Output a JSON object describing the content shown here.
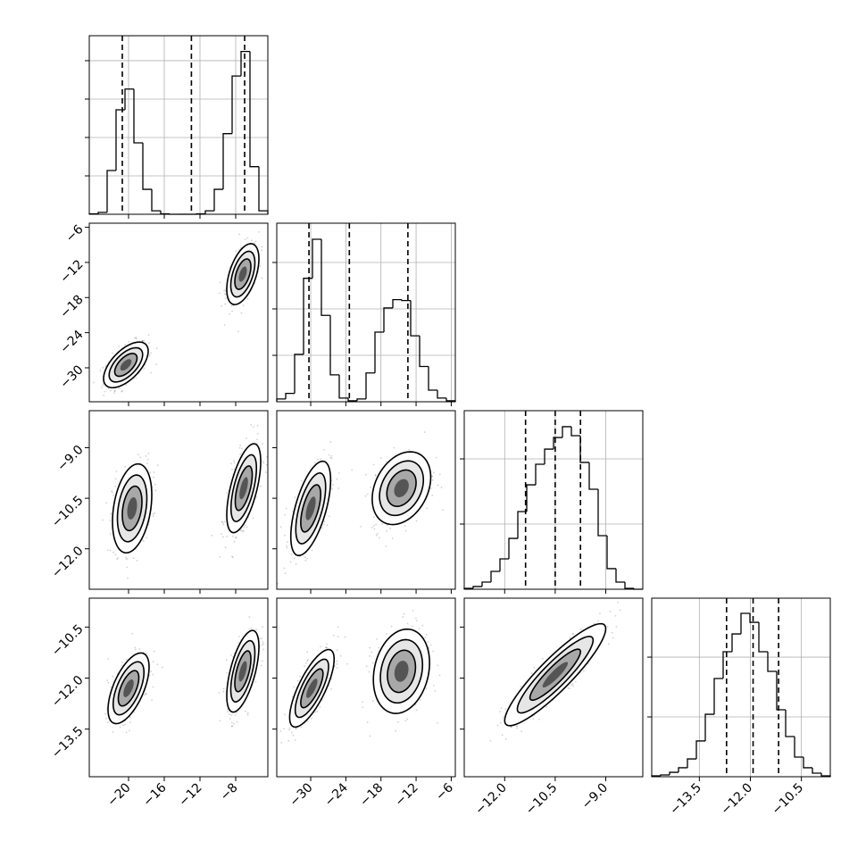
{
  "chart_data": {
    "type": "corner",
    "grid": true,
    "color": "#000000",
    "params": [
      {
        "lim": [
          -24.4,
          -4.4
        ],
        "ticks": [
          {
            "value": -20,
            "label": "−20"
          },
          {
            "value": -16,
            "label": "−16"
          },
          {
            "value": -12,
            "label": "−12"
          },
          {
            "value": -8,
            "label": "−8"
          }
        ],
        "quantiles": [
          -20.7,
          -12.96,
          -7.0
        ],
        "hist": {
          "bins": [
            -24.4,
            -23.4,
            -22.4,
            -21.4,
            -20.4,
            -19.4,
            -18.4,
            -17.4,
            -16.4,
            -15.4,
            -14.4,
            -13.4,
            -12.4,
            -11.4,
            -10.4,
            -9.4,
            -8.4,
            -7.4,
            -6.4,
            -5.4,
            -4.4
          ],
          "counts": [
            5,
            25,
            570,
            1360,
            1630,
            930,
            325,
            45,
            5,
            0,
            0,
            0,
            5,
            45,
            325,
            1050,
            1800,
            2120,
            620,
            45
          ],
          "ylim": [
            0,
            2325
          ],
          "yticks": [
            500,
            1000,
            1500,
            2000
          ]
        }
      },
      {
        "lim": [
          -35.8,
          -5.3
        ],
        "ticks": [
          {
            "value": -30,
            "label": "−30"
          },
          {
            "value": -24,
            "label": "−24"
          },
          {
            "value": -18,
            "label": "−18"
          },
          {
            "value": -12,
            "label": "−12"
          },
          {
            "value": -6,
            "label": "−6"
          }
        ],
        "quantiles": [
          -30.3,
          -23.4,
          -13.4
        ],
        "hist": {
          "bins": [
            -35.8,
            -34.275,
            -32.75,
            -31.225,
            -29.7,
            -28.175,
            -26.65,
            -25.125,
            -23.6,
            -22.075,
            -20.55,
            -19.025,
            -17.5,
            -15.975,
            -14.45,
            -12.925,
            -11.4,
            -9.875,
            -8.35,
            -6.825,
            -5.3
          ],
          "counts": [
            30,
            90,
            510,
            1330,
            1750,
            930,
            290,
            40,
            10,
            30,
            310,
            750,
            1010,
            1100,
            1090,
            710,
            380,
            125,
            40,
            10
          ],
          "ylim": [
            0,
            1923
          ],
          "yticks": [
            500,
            1000,
            1500
          ]
        }
      },
      {
        "lim": [
          -13.2,
          -7.9
        ],
        "ticks": [
          {
            "value": -12,
            "label": "−12.0"
          },
          {
            "value": -10.5,
            "label": "−10.5"
          },
          {
            "value": -9,
            "label": "−9.0"
          }
        ],
        "quantiles": [
          -11.38,
          -10.5,
          -9.75
        ],
        "hist": {
          "bins": [
            -13.2,
            -12.935,
            -12.67,
            -12.405,
            -12.14,
            -11.875,
            -11.61,
            -11.345,
            -11.08,
            -10.815,
            -10.55,
            -10.285,
            -10.02,
            -9.755,
            -9.49,
            -9.225,
            -8.96,
            -8.695,
            -8.43,
            -8.165,
            -7.9
          ],
          "counts": [
            7,
            21,
            55,
            137,
            233,
            390,
            596,
            801,
            959,
            1075,
            1164,
            1247,
            1178,
            973,
            767,
            411,
            158,
            55,
            7,
            0
          ],
          "ylim": [
            0,
            1370
          ],
          "yticks": [
            500,
            1000
          ]
        }
      },
      {
        "lim": [
          -14.9,
          -9.65
        ],
        "ticks": [
          {
            "value": -13.5,
            "label": "−13.5"
          },
          {
            "value": -12,
            "label": "−12.0"
          },
          {
            "value": -10.5,
            "label": "−10.5"
          }
        ],
        "quantiles": [
          -12.7,
          -11.92,
          -11.17
        ],
        "hist": {
          "bins": [
            -14.9,
            -14.6375,
            -14.375,
            -14.1125,
            -13.85,
            -13.5875,
            -13.325,
            -13.0625,
            -12.8,
            -12.5375,
            -12.275,
            -12.0125,
            -11.75,
            -11.4875,
            -11.225,
            -10.9625,
            -10.7,
            -10.4375,
            -10.175,
            -9.9125,
            -9.65
          ],
          "counts": [
            7,
            15,
            37,
            75,
            149,
            299,
            522,
            821,
            1045,
            1194,
            1366,
            1291,
            1045,
            881,
            560,
            336,
            164,
            75,
            30,
            7
          ],
          "ylim": [
            0,
            1493
          ],
          "yticks": [
            500,
            1000
          ]
        }
      }
    ],
    "pairs": [
      {
        "clusters": [
          {
            "mean_x": -20.3,
            "mean_y": -29.5,
            "sd_x": 1.25,
            "sd_y": 1.95,
            "rho": 0.6
          },
          {
            "mean_x": -7.2,
            "mean_y": -14,
            "sd_x": 0.9,
            "sd_y": 2.6,
            "rho": 0.5
          }
        ]
      },
      {
        "clusters": [
          {
            "mean_x": -19.6,
            "mean_y": -10.8,
            "sd_x": 1.1,
            "sd_y": 0.66,
            "rho": 0.3
          },
          {
            "mean_x": -7.1,
            "mean_y": -10.2,
            "sd_x": 0.95,
            "sd_y": 0.66,
            "rho": 0.6
          }
        ]
      },
      {
        "clusters": [
          {
            "mean_x": -30,
            "mean_y": -10.8,
            "sd_x": 1.7,
            "sd_y": 0.7,
            "rho": 0.6
          },
          {
            "mean_x": -14.5,
            "mean_y": -10.2,
            "sd_x": 2.5,
            "sd_y": 0.54,
            "rho": 0.3
          }
        ]
      },
      {
        "clusters": [
          {
            "mean_x": -20,
            "mean_y": -12.3,
            "sd_x": 1.15,
            "sd_y": 0.52,
            "rho": 0.6
          },
          {
            "mean_x": -7.2,
            "mean_y": -11.8,
            "sd_x": 0.9,
            "sd_y": 0.6,
            "rho": 0.6
          }
        ]
      },
      {
        "clusters": [
          {
            "mean_x": -29.8,
            "mean_y": -12.3,
            "sd_x": 1.9,
            "sd_y": 0.57,
            "rho": 0.75
          },
          {
            "mean_x": -14.5,
            "mean_y": -11.8,
            "sd_x": 2.4,
            "sd_y": 0.62,
            "rho": 0.2
          }
        ]
      },
      {
        "clusters": [
          {
            "mean_x": -10.5,
            "mean_y": -11.9,
            "sd_x": 0.75,
            "sd_y": 0.75,
            "rho": 0.9
          }
        ]
      }
    ]
  }
}
